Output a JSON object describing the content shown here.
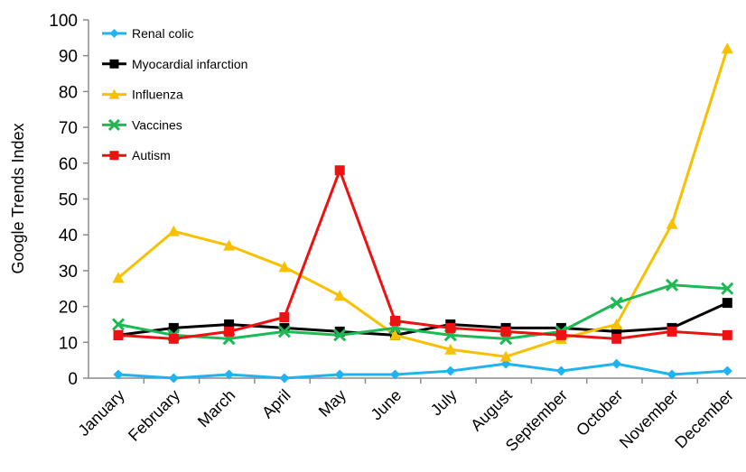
{
  "chart_data": {
    "type": "line",
    "title": "",
    "xlabel": "",
    "ylabel": "Google Trends Index",
    "ylim": [
      0,
      100
    ],
    "yticks": [
      0,
      10,
      20,
      30,
      40,
      50,
      60,
      70,
      80,
      90,
      100
    ],
    "grid": false,
    "legend_position": "top-left",
    "categories": [
      "January",
      "February",
      "March",
      "April",
      "May",
      "June",
      "July",
      "August",
      "September",
      "October",
      "November",
      "December"
    ],
    "series": [
      {
        "name": "Renal colic",
        "color": "#1fb4f0",
        "marker": "diamond",
        "values": [
          1,
          0,
          1,
          0,
          1,
          1,
          2,
          4,
          2,
          4,
          1,
          2
        ]
      },
      {
        "name": "Myocardial infarction",
        "color": "#000000",
        "marker": "square",
        "values": [
          12,
          14,
          15,
          14,
          13,
          12,
          15,
          14,
          14,
          13,
          14,
          21
        ]
      },
      {
        "name": "Influenza",
        "color": "#f7c000",
        "marker": "triangle",
        "values": [
          28,
          41,
          37,
          31,
          23,
          12,
          8,
          6,
          11,
          15,
          43,
          92
        ]
      },
      {
        "name": "Vaccines",
        "color": "#1db954",
        "marker": "x",
        "values": [
          15,
          12,
          11,
          13,
          12,
          14,
          12,
          11,
          13,
          21,
          26,
          25
        ]
      },
      {
        "name": "Autism",
        "color": "#ee1111",
        "marker": "square",
        "values": [
          12,
          11,
          13,
          17,
          58,
          16,
          14,
          13,
          12,
          11,
          13,
          12
        ]
      }
    ]
  }
}
